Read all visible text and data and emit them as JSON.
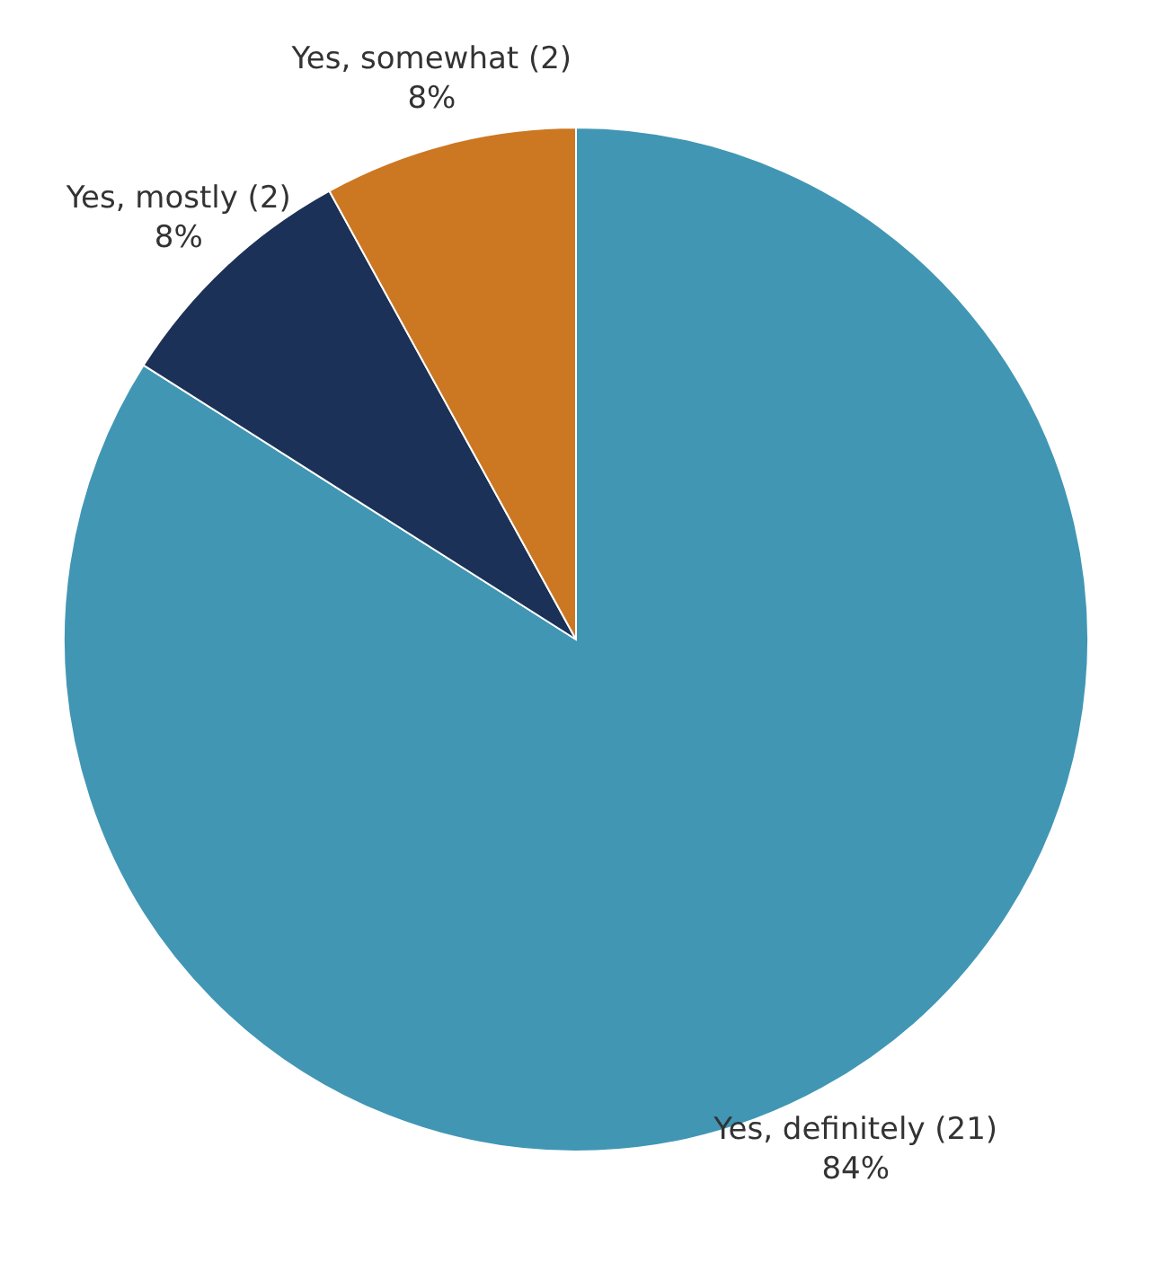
{
  "chart_data": {
    "type": "pie",
    "categories": [
      "Yes, definitely (21)",
      "Yes, mostly (2)",
      "Yes, somewhat (2)"
    ],
    "values": [
      84,
      8,
      8
    ],
    "value_labels": [
      "84%",
      "8%",
      "8%"
    ],
    "colors": [
      "#4196b4",
      "#1b3157",
      "#cc7722"
    ]
  }
}
